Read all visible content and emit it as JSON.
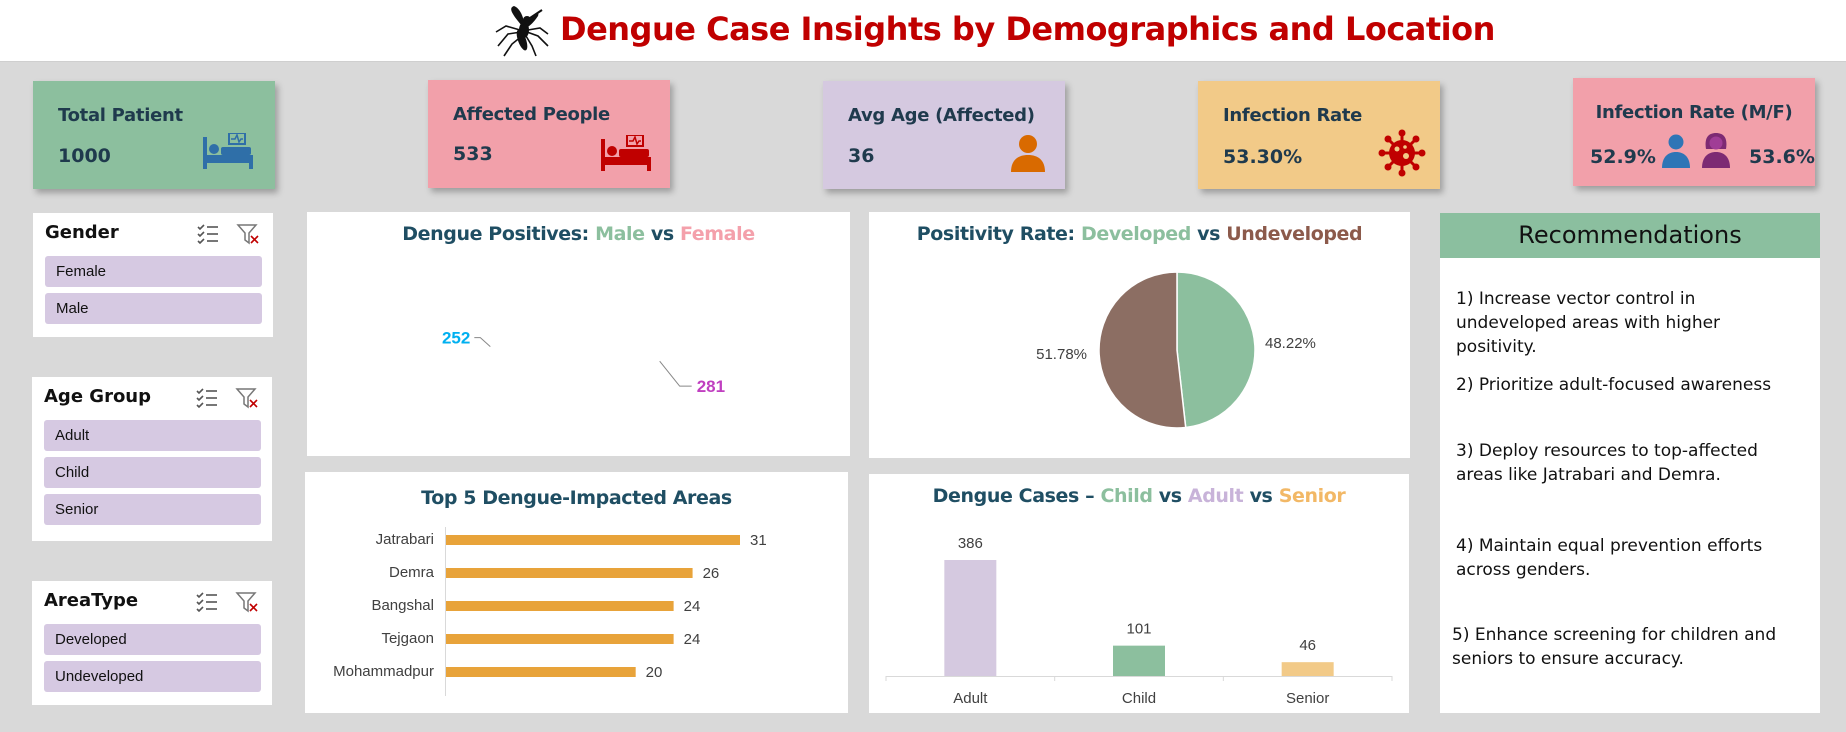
{
  "header": {
    "title": "Dengue Case Insights by Demographics and Location",
    "icon": "mosquito-icon"
  },
  "kpis": [
    {
      "label": "Total Patient",
      "value": "1000",
      "color": "#8cbf9e",
      "icon": "hospital-bed-icon",
      "icon_color": "#2f6fa8"
    },
    {
      "label": "Affected People",
      "value": "533",
      "color": "#f2a0aa",
      "icon": "hospital-bed-icon",
      "icon_color": "#c00000"
    },
    {
      "label": "Avg Age (Affected)",
      "value": "36",
      "color": "#d5c9e0",
      "icon": "person-icon",
      "icon_color": "#d96a00"
    },
    {
      "label": "Infection Rate",
      "value": "53.30%",
      "color": "#f2ca88",
      "icon": "virus-icon",
      "icon_color": "#c00000"
    },
    {
      "label": "Infection Rate (M/F)",
      "male_value": "52.9%",
      "female_value": "53.6%",
      "color": "#f2a0aa",
      "male_icon": "male-person-icon",
      "female_icon": "female-person-icon"
    }
  ],
  "slicers": [
    {
      "title": "Gender",
      "items": [
        "Female",
        "Male"
      ]
    },
    {
      "title": "Age Group",
      "items": [
        "Adult",
        "Child",
        "Senior"
      ]
    },
    {
      "title": "AreaType",
      "items": [
        "Developed",
        "Undeveloped"
      ]
    }
  ],
  "charts": {
    "gender": {
      "title_prefix": "Dengue Positives: ",
      "series_a": "Male",
      "vs": " vs ",
      "series_b": "Female"
    },
    "area_type": {
      "title_prefix": "Positivity Rate: ",
      "series_a": "Developed",
      "vs": " vs ",
      "series_b": "Undeveloped"
    },
    "areas": {
      "title": "Top 5 Dengue-Impacted Areas"
    },
    "age": {
      "title_prefix": "Dengue Cases – ",
      "series_a": "Child",
      "vs": " vs ",
      "series_b": "Adult",
      "vs2": " vs ",
      "series_c": "Senior"
    }
  },
  "chart_data": [
    {
      "type": "pie",
      "variant": "donut",
      "categories": [
        "Male",
        "Female"
      ],
      "values": [
        252,
        281
      ],
      "colors": [
        "#8cbf9e",
        "#f4a0ab"
      ],
      "label_colors": [
        "#00b0f0",
        "#c03fc0"
      ]
    },
    {
      "type": "pie",
      "categories": [
        "Developed",
        "Undeveloped"
      ],
      "values": [
        48.22,
        51.78
      ],
      "labels": [
        "48.22%",
        "51.78%"
      ],
      "colors": [
        "#8cbf9e",
        "#8c6e63"
      ]
    },
    {
      "type": "bar",
      "orientation": "horizontal",
      "categories": [
        "Jatrabari",
        "Demra",
        "Bangshal",
        "Tejgaon",
        "Mohammadpur"
      ],
      "values": [
        31,
        26,
        24,
        24,
        20
      ],
      "color": "#e8a33a"
    },
    {
      "type": "bar",
      "categories": [
        "Adult",
        "Child",
        "Senior"
      ],
      "values": [
        386,
        101,
        46
      ],
      "colors": [
        "#d5c9e0",
        "#8cbf9e",
        "#f2ca88"
      ]
    }
  ],
  "recommendations": {
    "title": "Recommendations",
    "items": [
      "1) Increase vector control in undeveloped areas with higher positivity.",
      "2) Prioritize adult-focused awareness",
      "3) Deploy resources to top-affected areas like Jatrabari and Demra.",
      "4) Maintain equal prevention efforts across genders.",
      "5) Enhance screening for children and seniors to ensure accuracy."
    ]
  },
  "colors": {
    "title": "#c00000",
    "chart_title": "#1f4e63",
    "male": "#8cbf9e",
    "female": "#f4a0ab",
    "developed": "#8cbf9e",
    "undeveloped": "#8c6e63",
    "child": "#8cbf9e",
    "adult": "#c8b3d9",
    "senior": "#f2b866"
  }
}
